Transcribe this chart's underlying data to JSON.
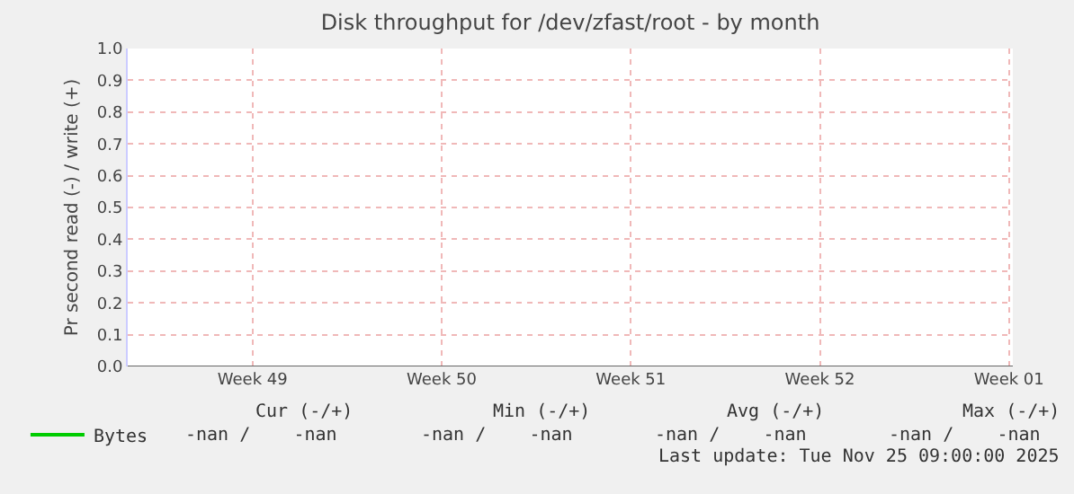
{
  "chart_data": {
    "type": "line",
    "title": "Disk throughput for /dev/zfast/root - by month",
    "ylabel": "Pr second read (-) / write (+)",
    "categories": [
      "Week 49",
      "Week 50",
      "Week 51",
      "Week 52",
      "Week 01"
    ],
    "series": [
      {
        "name": "Bytes",
        "color": "#00cc00",
        "values": [
          null,
          null,
          null,
          null,
          null
        ]
      }
    ],
    "ylim": [
      0,
      1
    ],
    "yticks": [
      {
        "value": 0,
        "label": "0.0"
      },
      {
        "value": 0.1,
        "label": "0.1"
      },
      {
        "value": 0.2,
        "label": "0.2"
      },
      {
        "value": 0.3,
        "label": "0.3"
      },
      {
        "value": 0.4,
        "label": "0.4"
      },
      {
        "value": 0.5,
        "label": "0.5"
      },
      {
        "value": 0.6,
        "label": "0.6"
      },
      {
        "value": 0.7,
        "label": "0.7"
      },
      {
        "value": 0.8,
        "label": "0.8"
      },
      {
        "value": 0.9,
        "label": "0.9"
      },
      {
        "value": 1,
        "label": "1.0"
      }
    ],
    "grid": true,
    "legend": "bottom left",
    "annotations": [
      "Cur (-/+)",
      "Min (-/+)",
      "Avg (-/+)",
      "Max (-/+)",
      "-nan /    -nan",
      "-nan /    -nan",
      "-nan /    -nan",
      "-nan /    -nan",
      "Last update: Tue Nov 25 09:00:00 2025"
    ]
  }
}
